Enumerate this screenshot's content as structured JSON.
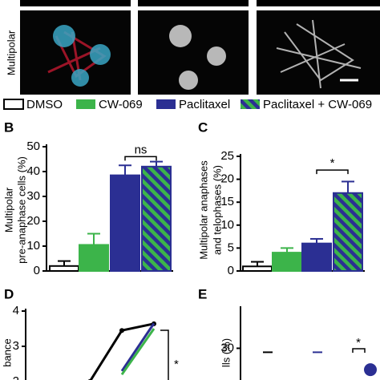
{
  "image_panel": {
    "row_label": "Multipolar"
  },
  "chart_data": [
    {
      "type": "bar",
      "label": "B",
      "ylabel": [
        "Multipolar",
        "pre-anaphase cells (%)"
      ],
      "ylim": [
        0,
        50
      ],
      "yticks": [
        0,
        10,
        20,
        30,
        40,
        50
      ],
      "annotation": "ns",
      "annotation_level": 46,
      "series": [
        {
          "name": "DMSO",
          "color": "#ffffff",
          "values": [
            2
          ],
          "errors": [
            2
          ]
        },
        {
          "name": "CW-069",
          "color": "#3cb44a",
          "values": [
            10.5
          ],
          "errors": [
            4.5
          ]
        },
        {
          "name": "Paclitaxel",
          "color": "#2b2f93",
          "values": [
            38.5
          ],
          "errors": [
            4
          ]
        },
        {
          "name": "Paclitaxel + CW-069",
          "color": "#2b2f93",
          "hatch": "#3cb44a",
          "values": [
            42
          ],
          "errors": [
            2
          ]
        }
      ]
    },
    {
      "type": "bar",
      "label": "C",
      "ylabel": [
        "Multipolar anaphases",
        "and telophases (%)"
      ],
      "ylim": [
        0,
        25
      ],
      "yticks": [
        0,
        5,
        10,
        15,
        20,
        25
      ],
      "annotation": "*",
      "annotation_level": 22,
      "series": [
        {
          "color": "#ffffff",
          "values": [
            1
          ],
          "errors": [
            1
          ]
        },
        {
          "color": "#3cb44a",
          "values": [
            4
          ],
          "errors": [
            1
          ]
        },
        {
          "color": "#2b2f93",
          "values": [
            6
          ],
          "errors": [
            1
          ]
        },
        {
          "color": "#2b2f93",
          "hatch": "#3cb44a",
          "values": [
            17
          ],
          "errors": [
            2.5
          ]
        }
      ]
    },
    {
      "type": "line",
      "label": "D",
      "ylabel": "bance",
      "ylim": [
        2,
        4
      ],
      "yticks": [
        2,
        3,
        4
      ],
      "annotation": "*",
      "categories": [
        null,
        null,
        null
      ],
      "series": [
        {
          "color": "#000000",
          "values": [
            2.0,
            3.45,
            3.64
          ]
        },
        {
          "color": "#2b2f93",
          "values": [
            null,
            2.3,
            3.65
          ]
        },
        {
          "color": "#3cb44a",
          "values": [
            null,
            2.2,
            3.5
          ]
        }
      ]
    },
    {
      "type": "dot",
      "label": "E",
      "ylabel": "lls (%)",
      "ylim": [
        26,
        35
      ],
      "yticks": [
        30
      ],
      "annotation": "*",
      "categories": [
        null,
        null,
        null
      ],
      "colors": [
        "#000000",
        "#2b2f93",
        "#2b2f93"
      ],
      "values": [
        29.5,
        29.5,
        27.3
      ]
    }
  ]
}
